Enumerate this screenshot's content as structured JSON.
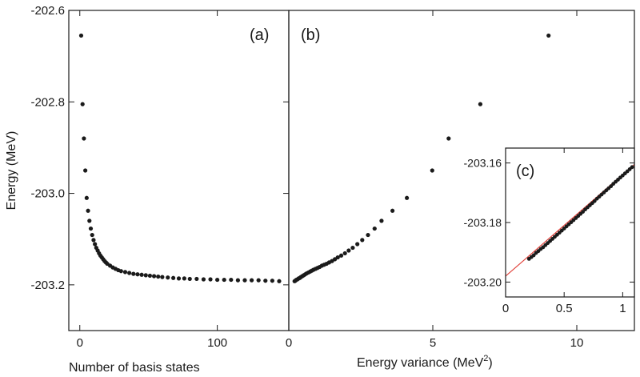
{
  "chart_data": [
    {
      "id": "a",
      "type": "scatter",
      "panel_label": "(a)",
      "xlabel": "Number of basis states",
      "ylabel": "Energy (MeV)",
      "xlim": [
        -8,
        152
      ],
      "ylim": [
        -203.3,
        -202.6
      ],
      "xticks": [
        0,
        100
      ],
      "yticks": [
        -202.6,
        -202.8,
        -203.0,
        -203.2
      ],
      "ytick_labels": [
        "-202.6",
        "-202.8",
        "-203.0",
        "-203.2"
      ],
      "marker_color": "#1a1a1a",
      "x": [
        1,
        2,
        3,
        4,
        5,
        6,
        7,
        8,
        9,
        10,
        11,
        12,
        13,
        14,
        15,
        16,
        17,
        18,
        19,
        20,
        22,
        24,
        26,
        28,
        30,
        33,
        36,
        39,
        42,
        45,
        48,
        51,
        54,
        57,
        60,
        64,
        68,
        72,
        76,
        80,
        85,
        90,
        95,
        100,
        105,
        110,
        115,
        120,
        125,
        130,
        135,
        140,
        145
      ],
      "y": [
        -202.655,
        -202.805,
        -202.88,
        -202.95,
        -203.01,
        -203.038,
        -203.06,
        -203.077,
        -203.091,
        -203.102,
        -203.111,
        -203.119,
        -203.125,
        -203.131,
        -203.136,
        -203.14,
        -203.144,
        -203.148,
        -203.151,
        -203.154,
        -203.158,
        -203.162,
        -203.165,
        -203.168,
        -203.17,
        -203.172,
        -203.174,
        -203.176,
        -203.177,
        -203.178,
        -203.179,
        -203.18,
        -203.181,
        -203.182,
        -203.183,
        -203.184,
        -203.185,
        -203.186,
        -203.186,
        -203.187,
        -203.187,
        -203.188,
        -203.188,
        -203.189,
        -203.189,
        -203.189,
        -203.19,
        -203.19,
        -203.19,
        -203.19,
        -203.191,
        -203.191,
        -203.192
      ]
    },
    {
      "id": "b",
      "type": "scatter",
      "panel_label": "(b)",
      "xlabel": "Energy variance (MeV",
      "xlabel_sup": "2",
      "xlabel_close": ")",
      "xlim": [
        0,
        12
      ],
      "ylim": [
        -203.3,
        -202.6
      ],
      "xticks": [
        0,
        5,
        10
      ],
      "marker_color": "#1a1a1a",
      "x": [
        9.02,
        6.65,
        5.55,
        4.98,
        4.1,
        3.6,
        3.22,
        2.98,
        2.75,
        2.55,
        2.38,
        2.22,
        2.08,
        1.95,
        1.82,
        1.7,
        1.6,
        1.5,
        1.4,
        1.31,
        1.23,
        1.15,
        1.07,
        1.0,
        0.93,
        0.86,
        0.8,
        0.74,
        0.68,
        0.62,
        0.57,
        0.52,
        0.47,
        0.42,
        0.38,
        0.34,
        0.3,
        0.26,
        0.23,
        0.2
      ],
      "y": [
        -202.655,
        -202.805,
        -202.88,
        -202.95,
        -203.01,
        -203.038,
        -203.06,
        -203.077,
        -203.091,
        -203.102,
        -203.111,
        -203.119,
        -203.125,
        -203.131,
        -203.136,
        -203.14,
        -203.144,
        -203.148,
        -203.151,
        -203.154,
        -203.156,
        -203.158,
        -203.161,
        -203.163,
        -203.165,
        -203.167,
        -203.169,
        -203.171,
        -203.173,
        -203.175,
        -203.177,
        -203.179,
        -203.181,
        -203.183,
        -203.185,
        -203.186,
        -203.188,
        -203.189,
        -203.191,
        -203.192
      ]
    },
    {
      "id": "c",
      "type": "scatter",
      "panel_label": "(c)",
      "xlim": [
        0,
        1.1
      ],
      "ylim": [
        -203.205,
        -203.155
      ],
      "xticks": [
        0,
        0.5,
        1
      ],
      "xtick_labels": [
        "0",
        "0.5",
        "1"
      ],
      "yticks": [
        -203.16,
        -203.18,
        -203.2
      ],
      "ytick_labels": [
        "-203.16",
        "-203.18",
        "-203.20"
      ],
      "marker_color": "#1a1a1a",
      "fit_line": {
        "color": "#e0413a",
        "x": [
          0,
          1.1
        ],
        "y": [
          -203.198,
          -203.1605
        ]
      },
      "x": [
        0.2,
        0.22,
        0.24,
        0.26,
        0.28,
        0.3,
        0.32,
        0.34,
        0.36,
        0.38,
        0.4,
        0.42,
        0.44,
        0.46,
        0.48,
        0.5,
        0.52,
        0.54,
        0.56,
        0.58,
        0.6,
        0.62,
        0.64,
        0.66,
        0.68,
        0.7,
        0.72,
        0.74,
        0.76,
        0.78,
        0.8,
        0.82,
        0.84,
        0.86,
        0.88,
        0.9,
        0.92,
        0.94,
        0.96,
        0.98,
        1.0,
        1.02,
        1.04,
        1.06,
        1.08
      ],
      "y": [
        -203.1922,
        -203.1916,
        -203.191,
        -203.1902,
        -203.1896,
        -203.1889,
        -203.1883,
        -203.1876,
        -203.1869,
        -203.1862,
        -203.1855,
        -203.1848,
        -203.1841,
        -203.1834,
        -203.1827,
        -203.182,
        -203.1813,
        -203.1806,
        -203.1799,
        -203.1792,
        -203.1785,
        -203.1778,
        -203.1771,
        -203.1764,
        -203.1756,
        -203.1749,
        -203.1742,
        -203.1735,
        -203.1728,
        -203.172,
        -203.1713,
        -203.1706,
        -203.1699,
        -203.1692,
        -203.1685,
        -203.1678,
        -203.167,
        -203.1663,
        -203.1656,
        -203.1649,
        -203.1642,
        -203.1635,
        -203.1628,
        -203.1621,
        -203.1614
      ]
    }
  ]
}
